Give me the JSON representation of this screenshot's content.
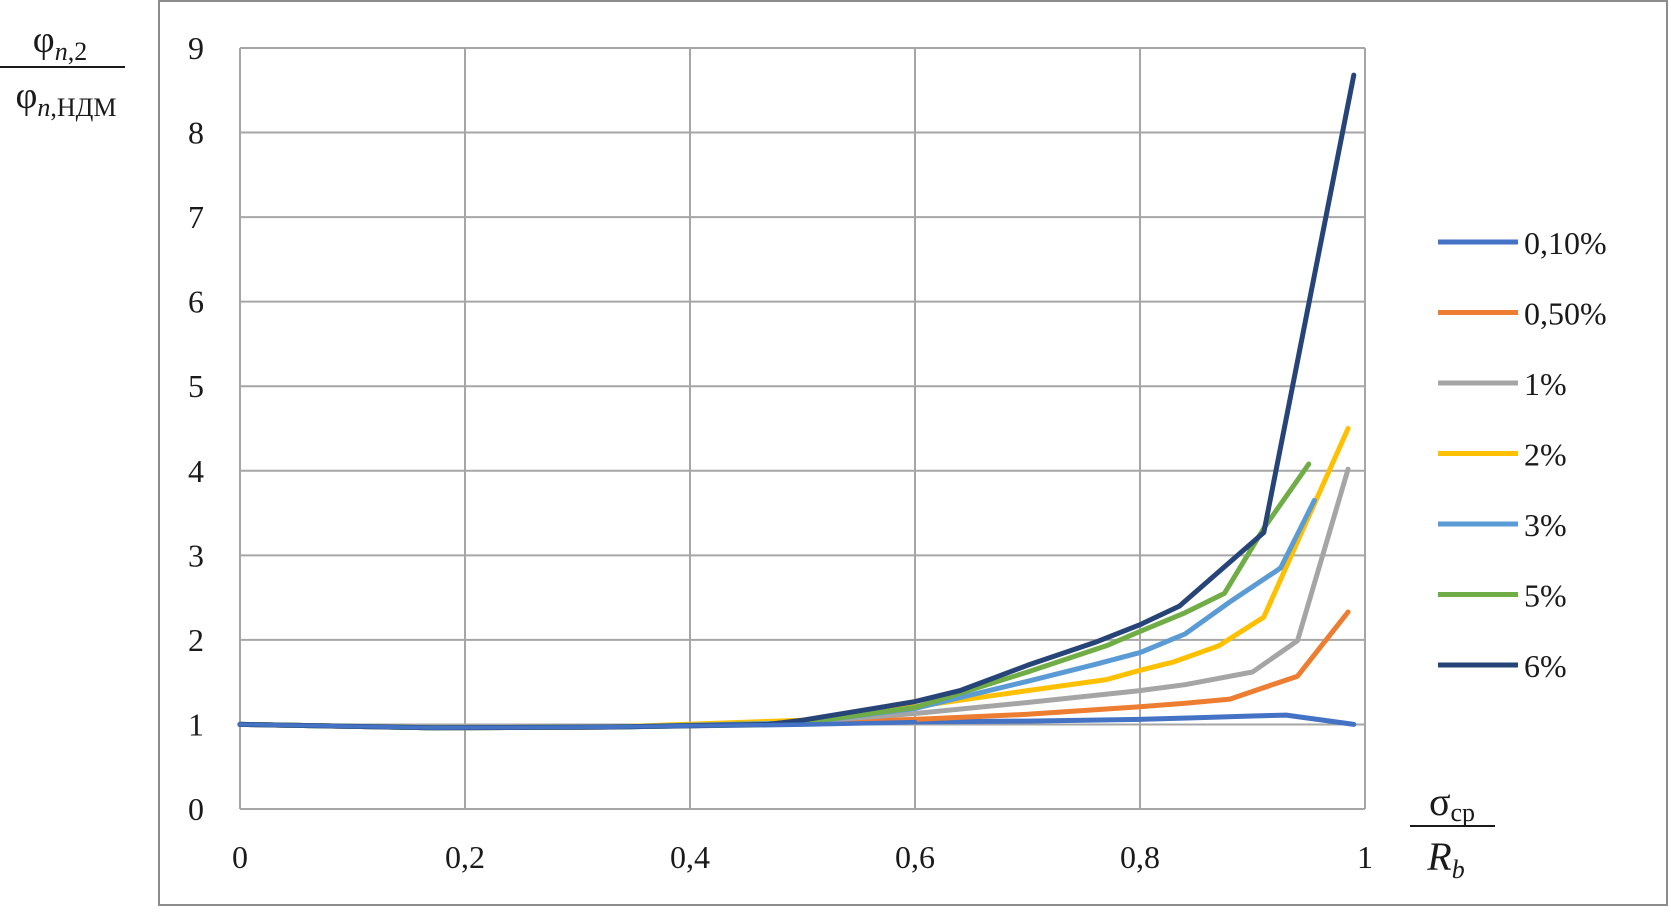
{
  "chart_data": {
    "type": "line",
    "ylabel": {
      "numerator": {
        "base": "φ",
        "sub_italic": "n",
        "sub_rest": ",2"
      },
      "denominator": {
        "base": "φ",
        "sub_italic": "n",
        "sub_rest": ",НДМ"
      }
    },
    "xlabel": {
      "numerator": {
        "base": "σ",
        "sub": "ср"
      },
      "denominator": {
        "base": "R",
        "sub": "b"
      }
    },
    "xlim": [
      0,
      1
    ],
    "ylim": [
      0,
      9
    ],
    "xticks": [
      "0",
      "0,2",
      "0,4",
      "0,6",
      "0,8",
      "1"
    ],
    "yticks": [
      "0",
      "1",
      "2",
      "3",
      "4",
      "5",
      "6",
      "7",
      "8",
      "9"
    ],
    "grid": true,
    "legend_position": "right",
    "series": [
      {
        "name": "0,10%",
        "color": "#4472C4",
        "x": [
          0,
          0.17,
          0.33,
          0.5,
          0.6,
          0.7,
          0.8,
          0.85,
          0.9,
          0.93,
          0.99
        ],
        "y": [
          1.0,
          0.96,
          0.97,
          1.0,
          1.03,
          1.04,
          1.06,
          1.08,
          1.1,
          1.11,
          1.0
        ]
      },
      {
        "name": "0,50%",
        "color": "#ED7D31",
        "x": [
          0,
          0.17,
          0.33,
          0.5,
          0.6,
          0.7,
          0.8,
          0.84,
          0.88,
          0.94,
          0.985
        ],
        "y": [
          1.0,
          0.96,
          0.97,
          1.02,
          1.06,
          1.12,
          1.21,
          1.25,
          1.3,
          1.57,
          2.33
        ]
      },
      {
        "name": "1%",
        "color": "#A5A5A5",
        "x": [
          0,
          0.17,
          0.33,
          0.5,
          0.6,
          0.7,
          0.8,
          0.84,
          0.9,
          0.94,
          0.985
        ],
        "y": [
          1.0,
          0.96,
          0.97,
          1.03,
          1.13,
          1.26,
          1.4,
          1.47,
          1.62,
          1.99,
          4.02
        ]
      },
      {
        "name": "2%",
        "color": "#FFC000",
        "x": [
          0,
          0.17,
          0.33,
          0.5,
          0.6,
          0.7,
          0.77,
          0.8,
          0.83,
          0.87,
          0.91,
          0.985
        ],
        "y": [
          1.0,
          0.96,
          0.97,
          1.05,
          1.21,
          1.4,
          1.53,
          1.64,
          1.74,
          1.93,
          2.27,
          4.5
        ]
      },
      {
        "name": "3%",
        "color": "#5B9BD5",
        "x": [
          0,
          0.17,
          0.33,
          0.5,
          0.6,
          0.7,
          0.76,
          0.8,
          0.84,
          0.88,
          0.925,
          0.955
        ],
        "y": [
          1.0,
          0.96,
          0.97,
          1.02,
          1.19,
          1.51,
          1.71,
          1.85,
          2.07,
          2.45,
          2.85,
          3.65
        ]
      },
      {
        "name": "5%",
        "color": "#70AD47",
        "x": [
          0,
          0.17,
          0.33,
          0.47,
          0.5,
          0.6,
          0.7,
          0.77,
          0.8,
          0.84,
          0.875,
          0.91,
          0.95
        ],
        "y": [
          1.0,
          0.96,
          0.97,
          1.0,
          1.02,
          1.2,
          1.62,
          1.93,
          2.1,
          2.32,
          2.55,
          3.32,
          4.08
        ]
      },
      {
        "name": "6%",
        "color": "#264478",
        "x": [
          0,
          0.17,
          0.33,
          0.47,
          0.5,
          0.6,
          0.64,
          0.7,
          0.76,
          0.8,
          0.835,
          0.91,
          0.99
        ],
        "y": [
          1.0,
          0.96,
          0.97,
          1.0,
          1.05,
          1.27,
          1.4,
          1.7,
          1.97,
          2.18,
          2.4,
          3.27,
          8.68
        ]
      }
    ]
  }
}
